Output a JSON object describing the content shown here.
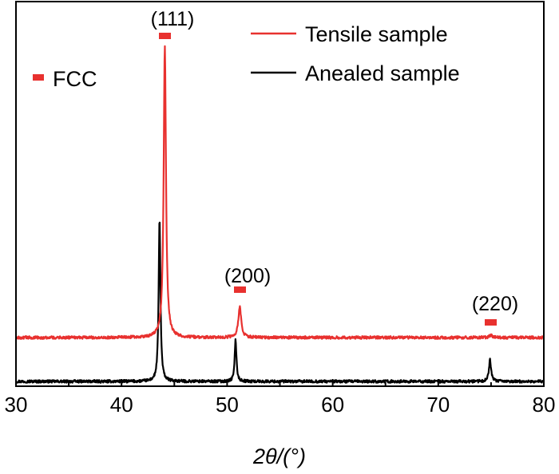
{
  "chart_data": {
    "type": "line",
    "title": "",
    "xlabel": "2θ/(°)",
    "ylabel": "",
    "xlim": [
      30,
      80
    ],
    "xticks": [
      30,
      40,
      50,
      60,
      70,
      80
    ],
    "grid": false,
    "legend": {
      "placement": "top-right",
      "entries": [
        {
          "name": "Tensile sample",
          "color": "#e8312f"
        },
        {
          "name": "Anealed sample",
          "color": "#000000"
        }
      ]
    },
    "phase_marker": {
      "label": "FCC",
      "color": "#e8312f"
    },
    "peaks": [
      {
        "label": "(111)",
        "x": 44.1
      },
      {
        "label": "(200)",
        "x": 51.2
      },
      {
        "label": "(220)",
        "x": 75.0
      }
    ],
    "series": [
      {
        "name": "Tensile sample",
        "color": "#e8312f",
        "baseline": 0.0,
        "noise": 0.035,
        "peaks": [
          {
            "x": 44.1,
            "height": 7.3,
            "width": 0.13
          },
          {
            "x": 51.2,
            "height": 0.78,
            "width": 0.16
          },
          {
            "x": 75.0,
            "height": 0.05,
            "width": 0.2
          }
        ]
      },
      {
        "name": "Anealed sample",
        "color": "#000000",
        "baseline": -1.1,
        "noise": 0.035,
        "peaks": [
          {
            "x": 43.6,
            "height": 4.1,
            "width": 0.1
          },
          {
            "x": 50.8,
            "height": 1.05,
            "width": 0.1
          },
          {
            "x": 74.9,
            "height": 0.55,
            "width": 0.12
          }
        ]
      }
    ]
  }
}
